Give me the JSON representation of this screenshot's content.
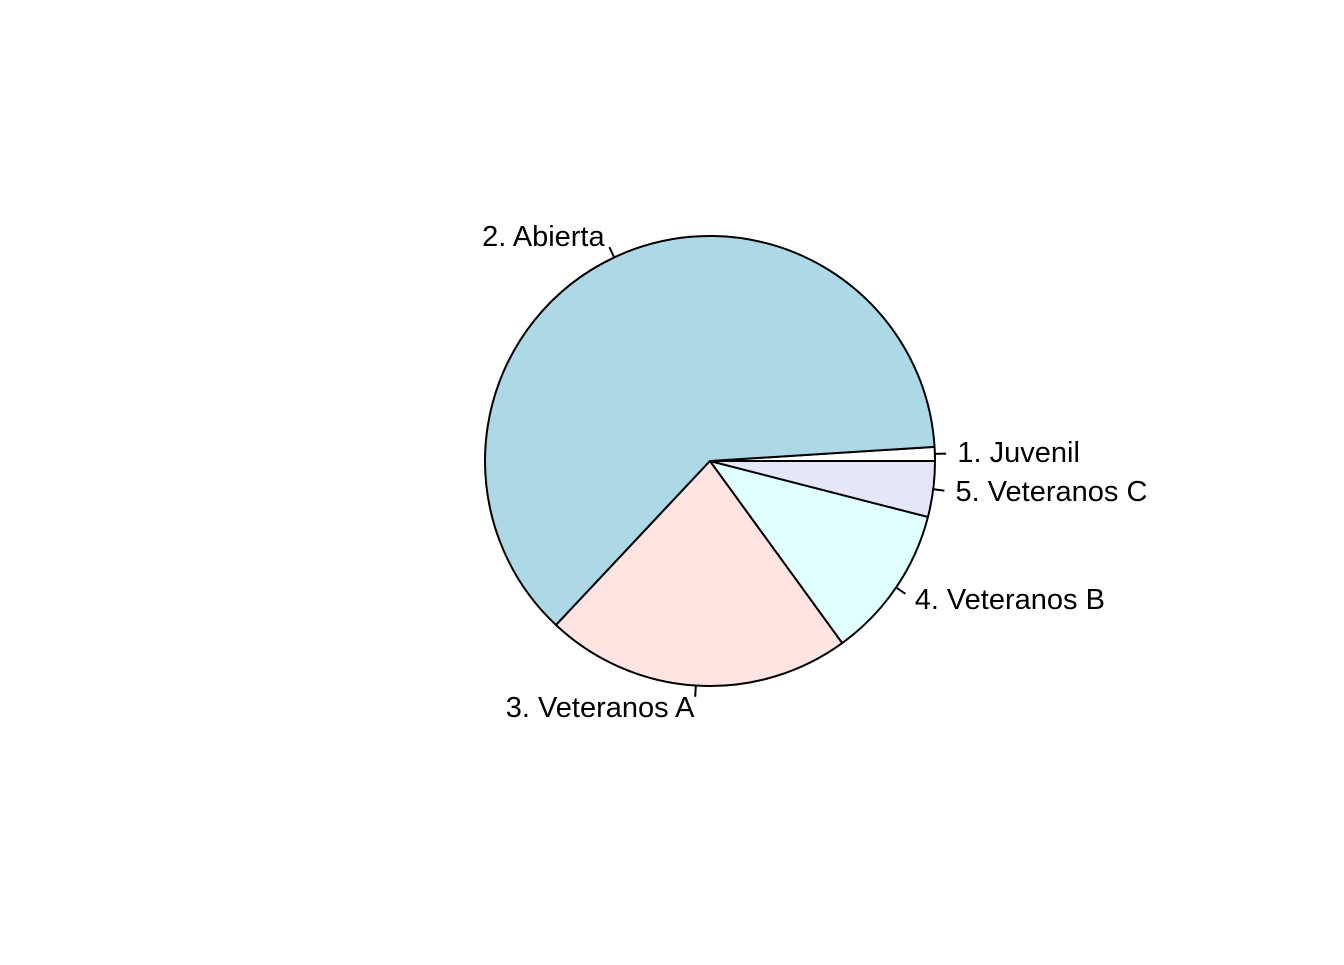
{
  "chart_data": {
    "type": "pie",
    "title": "",
    "start": "3 o'clock",
    "direction": "counter-clockwise",
    "slices": [
      {
        "label": "1. Juvenil",
        "value": 1,
        "color": "#ffffff"
      },
      {
        "label": "2. Abierta",
        "value": 62,
        "color": "#add8e6"
      },
      {
        "label": "3. Veteranos A",
        "value": 22,
        "color": "#ffe4e1"
      },
      {
        "label": "4. Veteranos B",
        "value": 11,
        "color": "#e0ffff"
      },
      {
        "label": "5. Veteranos C",
        "value": 4,
        "color": "#e6e6fa"
      }
    ],
    "border_color": "#000000"
  }
}
